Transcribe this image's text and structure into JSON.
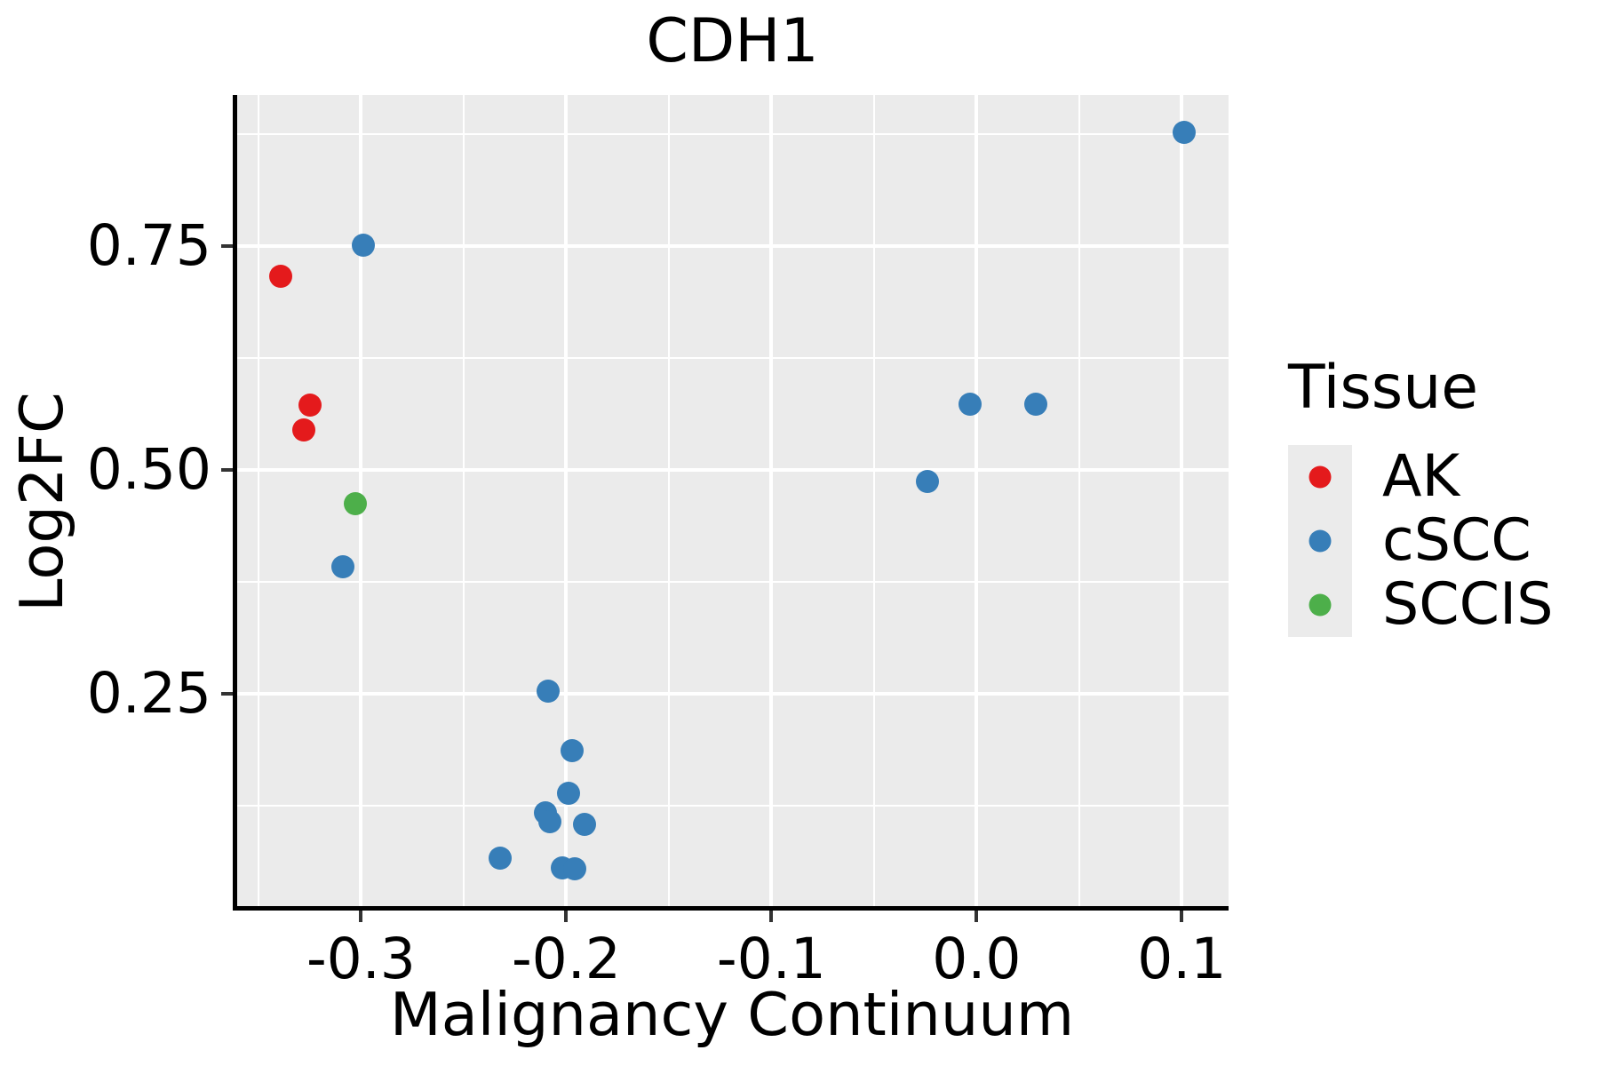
{
  "title": "CDH1",
  "axes": {
    "x": {
      "label": "Malignancy Continuum",
      "ticks": [
        -0.3,
        -0.2,
        -0.1,
        0.0,
        0.1
      ],
      "tick_labels": [
        "-0.3",
        "-0.2",
        "-0.1",
        "0.0",
        "0.1"
      ],
      "minor_ticks": [
        -0.35,
        -0.25,
        -0.15,
        -0.05,
        0.05
      ],
      "range": [
        -0.3608,
        0.1228
      ]
    },
    "y": {
      "label": "Log2FC",
      "ticks": [
        0.25,
        0.5,
        0.75
      ],
      "tick_labels": [
        "0.25",
        "0.50",
        "0.75"
      ],
      "minor_ticks": [
        0.125,
        0.375,
        0.625,
        0.875
      ],
      "range": [
        0.0129,
        0.9187
      ]
    }
  },
  "legend": {
    "title": "Tissue",
    "items": [
      {
        "label": "AK",
        "color": "#E41A1C"
      },
      {
        "label": "cSCC",
        "color": "#377EB8"
      },
      {
        "label": "SCCIS",
        "color": "#4DAF4A"
      }
    ]
  },
  "colors": {
    "panel_bg": "#EBEBEB",
    "grid": "#FFFFFF",
    "axis_line": "#000000",
    "tick_mark": "#333333",
    "ak_red": "#E41A1C",
    "cscc_blue": "#377EB8",
    "sccis_green": "#4DAF4A"
  },
  "chart_data": {
    "type": "scatter",
    "title": "CDH1",
    "xlabel": "Malignancy Continuum",
    "ylabel": "Log2FC",
    "xlim": [
      -0.3608,
      0.1228
    ],
    "ylim": [
      0.0129,
      0.9187
    ],
    "grid": "major-and-minor",
    "legend_position": "right",
    "series": [
      {
        "name": "AK",
        "color": "#E41A1C",
        "points": [
          [
            -0.339,
            0.716
          ],
          [
            -0.325,
            0.572
          ],
          [
            -0.328,
            0.545
          ]
        ]
      },
      {
        "name": "cSCC",
        "color": "#377EB8",
        "points": [
          [
            -0.299,
            0.751
          ],
          [
            -0.309,
            0.392
          ],
          [
            0.101,
            0.877
          ],
          [
            -0.003,
            0.573
          ],
          [
            0.029,
            0.573
          ],
          [
            -0.024,
            0.487
          ],
          [
            -0.209,
            0.253
          ],
          [
            -0.197,
            0.187
          ],
          [
            -0.199,
            0.139
          ],
          [
            -0.21,
            0.117
          ],
          [
            -0.208,
            0.107
          ],
          [
            -0.191,
            0.104
          ],
          [
            -0.232,
            0.066
          ],
          [
            -0.202,
            0.056
          ],
          [
            -0.196,
            0.055
          ]
        ]
      },
      {
        "name": "SCCIS",
        "color": "#4DAF4A",
        "points": [
          [
            -0.303,
            0.462
          ]
        ]
      }
    ]
  }
}
